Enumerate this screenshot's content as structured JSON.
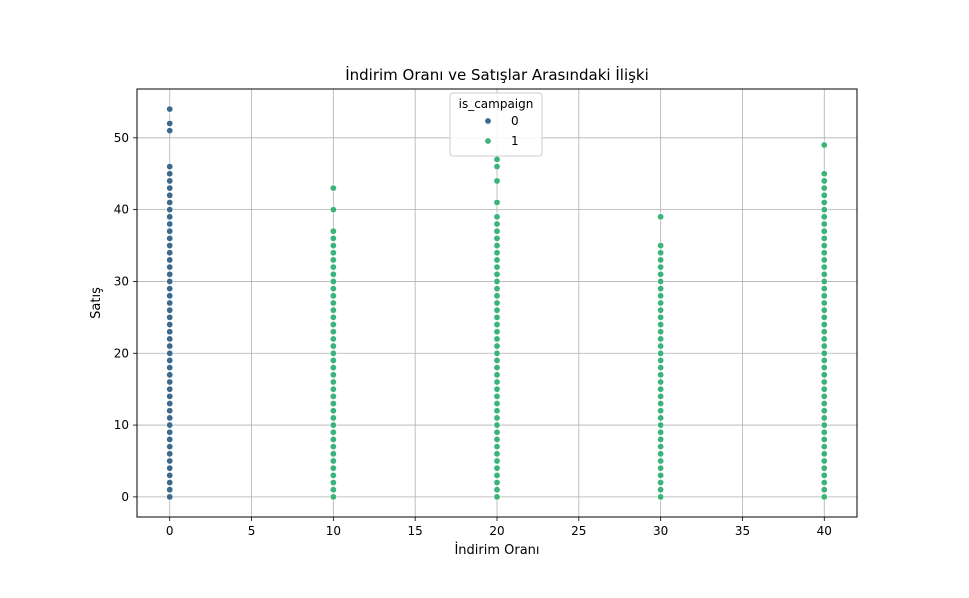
{
  "chart_data": {
    "type": "scatter",
    "title": "İndirim Oranı ve Satışlar Arasındaki İlişki",
    "xlabel": "İndirim Oranı",
    "ylabel": "Satış",
    "xlim": [
      -2,
      42
    ],
    "ylim": [
      -2.8,
      56.8
    ],
    "xticks": [
      0,
      5,
      10,
      15,
      20,
      25,
      30,
      35,
      40
    ],
    "yticks": [
      0,
      10,
      20,
      30,
      40,
      50
    ],
    "grid": true,
    "legend": {
      "title": "is_campaign",
      "placement": "upper-center",
      "entries": [
        {
          "label": "0",
          "color": "#3b6a8e"
        },
        {
          "label": "1",
          "color": "#3bb47a"
        }
      ]
    },
    "series": [
      {
        "name": "0",
        "color": "#3b6a8e",
        "points": [
          {
            "x": 0,
            "y_from": 0,
            "y_to": 46
          },
          {
            "x": 0,
            "y": [
              51,
              52,
              54
            ]
          }
        ]
      },
      {
        "name": "1",
        "color": "#3bb47a",
        "points": [
          {
            "x": 10,
            "y_from": 0,
            "y_to": 37
          },
          {
            "x": 10,
            "y": [
              40,
              43
            ]
          },
          {
            "x": 20,
            "y_from": 0,
            "y_to": 39
          },
          {
            "x": 20,
            "y": [
              41,
              44,
              46,
              47
            ]
          },
          {
            "x": 30,
            "y_from": 0,
            "y_to": 35
          },
          {
            "x": 30,
            "y": [
              39
            ]
          },
          {
            "x": 40,
            "y_from": 0,
            "y_to": 45
          },
          {
            "x": 40,
            "y": [
              49
            ]
          }
        ]
      }
    ]
  }
}
